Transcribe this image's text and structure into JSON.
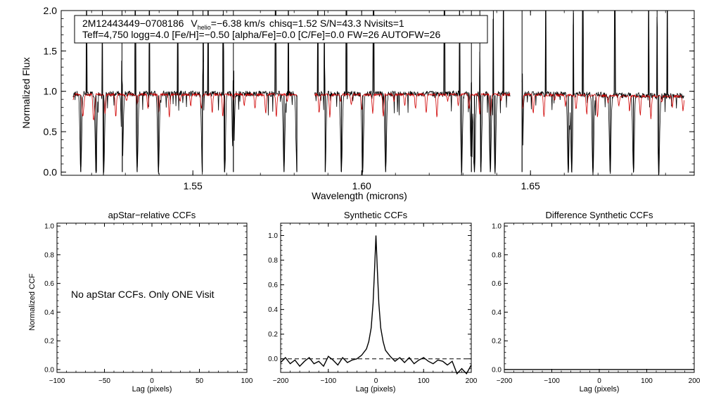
{
  "chart_data": [
    {
      "id": "spectrum",
      "type": "line",
      "title": "",
      "xlabel": "Wavelength (microns)",
      "ylabel": "Normalized Flux",
      "xlim": [
        1.511,
        1.6985
      ],
      "ylim": [
        -0.04,
        2.0
      ],
      "xticks": [
        {
          "value": 1.55,
          "label": "1.55"
        },
        {
          "value": 1.6,
          "label": "1.60"
        },
        {
          "value": 1.65,
          "label": "1.65"
        }
      ],
      "yticks": [
        {
          "value": 0.0,
          "label": "0.0"
        },
        {
          "value": 0.5,
          "label": "0.5"
        },
        {
          "value": 1.0,
          "label": "1.0"
        },
        {
          "value": 1.5,
          "label": "1.5"
        },
        {
          "value": 2.0,
          "label": "2.0"
        }
      ],
      "annotation": {
        "star": "2M12443449−0708186",
        "v_prefix": "V",
        "v_sub": "helio",
        "v_value": "=−6.38 km/s",
        "stats": "chisq=1.52  S/N=43.3  Nvisits=1",
        "line2": "Teff=4,750 logg=4.0 [Fe/H]=−0.50 [alpha/Fe]=0.0 [C/Fe]=0.0 FW=26 AUTOFW=26"
      },
      "detector_ranges": [
        [
          1.5145,
          1.5808
        ],
        [
          1.586,
          1.644
        ],
        [
          1.6475,
          1.6955
        ]
      ],
      "series": [
        {
          "name": "observed",
          "color": "#000000",
          "continuum": 0.97
        },
        {
          "name": "synthetic",
          "color": "#d00000",
          "continuum": 0.96
        }
      ],
      "absorption_lines": [
        1.5168,
        1.5213,
        1.5236,
        1.5291,
        1.5335,
        1.5398,
        1.5528,
        1.5594,
        1.562,
        1.577,
        1.5808,
        1.5892,
        1.594,
        1.6003,
        1.6071,
        1.6296,
        1.6325,
        1.6334,
        1.6353,
        1.6381,
        1.6395,
        1.6475,
        1.6612,
        1.6622,
        1.6685,
        1.6736,
        1.6805,
        1.688
      ],
      "emission_spikes": [
        1.5185,
        1.5232,
        1.529,
        1.533,
        1.5371,
        1.5455,
        1.553,
        1.5545,
        1.559,
        1.562,
        1.5745,
        1.5783,
        1.587,
        1.589,
        1.5955,
        1.6035,
        1.6245,
        1.629,
        1.6325,
        1.635,
        1.639,
        1.642,
        1.6475,
        1.6545,
        1.6627,
        1.6655,
        1.675,
        1.685,
        1.6875,
        1.6905
      ]
    },
    {
      "id": "apstar-ccf",
      "type": "line",
      "title": "apStar−relative CCFs",
      "xlabel": "Lag (pixels)",
      "ylabel": "Normalized CCF",
      "xlim": [
        -100,
        100
      ],
      "ylim": [
        -0.02,
        1.02
      ],
      "xticks": [
        {
          "value": -100,
          "label": "−100"
        },
        {
          "value": -50,
          "label": "−50"
        },
        {
          "value": 0,
          "label": "0"
        },
        {
          "value": 50,
          "label": "50"
        },
        {
          "value": 100,
          "label": "100"
        }
      ],
      "yticks": [
        {
          "value": 0.0,
          "label": "0.0"
        },
        {
          "value": 0.2,
          "label": "0.2"
        },
        {
          "value": 0.4,
          "label": "0.4"
        },
        {
          "value": 0.6,
          "label": "0.6"
        },
        {
          "value": 0.8,
          "label": "0.8"
        },
        {
          "value": 1.0,
          "label": "1.0"
        }
      ],
      "note": "No apStar CCFs.  Only ONE Visit",
      "series": []
    },
    {
      "id": "synthetic-ccf",
      "type": "line",
      "title": "Synthetic CCFs",
      "xlabel": "Lag (pixels)",
      "ylabel": "",
      "xlim": [
        -200,
        200
      ],
      "ylim": [
        -0.11,
        1.1
      ],
      "xticks": [
        {
          "value": -200,
          "label": "−200"
        },
        {
          "value": -100,
          "label": "−100"
        },
        {
          "value": 0,
          "label": "0"
        },
        {
          "value": 100,
          "label": "100"
        },
        {
          "value": 200,
          "label": "200"
        }
      ],
      "yticks": [
        {
          "value": 0.0,
          "label": "0.0"
        },
        {
          "value": 0.2,
          "label": "0.2"
        },
        {
          "value": 0.4,
          "label": "0.4"
        },
        {
          "value": 0.6,
          "label": "0.6"
        },
        {
          "value": 0.8,
          "label": "0.8"
        },
        {
          "value": 1.0,
          "label": "1.0"
        }
      ],
      "reference_line": 0.0,
      "series": [
        {
          "name": "CCF",
          "x": [
            -200,
            -190,
            -180,
            -170,
            -160,
            -150,
            -140,
            -130,
            -120,
            -110,
            -100,
            -90,
            -80,
            -70,
            -60,
            -50,
            -40,
            -30,
            -20,
            -15,
            -10,
            -6,
            -3,
            0,
            3,
            6,
            10,
            15,
            20,
            30,
            40,
            50,
            60,
            70,
            80,
            90,
            100,
            110,
            120,
            130,
            140,
            150,
            160,
            170,
            180,
            190,
            200
          ],
          "y": [
            -0.03,
            0.01,
            -0.04,
            -0.01,
            -0.06,
            -0.02,
            0.01,
            -0.04,
            -0.02,
            -0.06,
            0.02,
            -0.01,
            -0.05,
            0.01,
            -0.03,
            -0.01,
            0.0,
            0.03,
            0.08,
            0.14,
            0.25,
            0.45,
            0.72,
            1.0,
            0.72,
            0.45,
            0.25,
            0.14,
            0.07,
            0.02,
            -0.02,
            0.01,
            -0.03,
            0.01,
            -0.04,
            -0.01,
            0.01,
            -0.02,
            -0.04,
            -0.01,
            -0.02,
            -0.05,
            -0.02,
            -0.12,
            -0.08,
            -0.12,
            -0.05
          ]
        }
      ]
    },
    {
      "id": "difference-ccf",
      "type": "line",
      "title": "Difference Synthetic CCFs",
      "xlabel": "Lag (pixels)",
      "ylabel": "",
      "xlim": [
        -200,
        200
      ],
      "ylim": [
        -0.02,
        1.02
      ],
      "xticks": [
        {
          "value": -200,
          "label": "−200"
        },
        {
          "value": -100,
          "label": "−100"
        },
        {
          "value": 0,
          "label": "0"
        },
        {
          "value": 100,
          "label": "100"
        },
        {
          "value": 200,
          "label": "200"
        }
      ],
      "yticks": [
        {
          "value": 0.0,
          "label": "0.0"
        },
        {
          "value": 0.2,
          "label": "0.2"
        },
        {
          "value": 0.4,
          "label": "0.4"
        },
        {
          "value": 0.6,
          "label": "0.6"
        },
        {
          "value": 0.8,
          "label": "0.8"
        },
        {
          "value": 1.0,
          "label": "1.0"
        }
      ],
      "series": [
        {
          "name": "difference",
          "x": [
            -200,
            200
          ],
          "y": [
            0.0,
            0.0
          ]
        }
      ]
    }
  ]
}
